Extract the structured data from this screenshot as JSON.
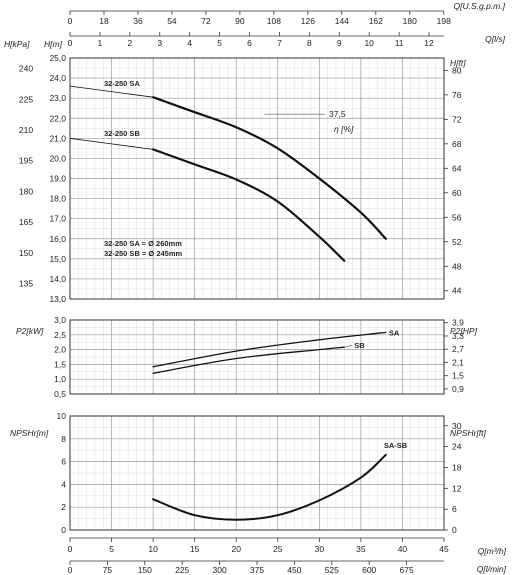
{
  "chart_data": [
    {
      "type": "line",
      "panel": "head",
      "xlabel_top_1": "Q[U.S.g.p.m.]",
      "xlabel_top_2": "Q[l/s]",
      "ylabel_left_1": "H[kPa]",
      "ylabel_left_2": "H[m]",
      "ylabel_right": "H[ft]",
      "efficiency_label": "η [%]",
      "efficiency_value": "37,5",
      "ticks_usgpm": [
        "0",
        "18",
        "36",
        "54",
        "72",
        "90",
        "108",
        "126",
        "144",
        "162",
        "180",
        "198"
      ],
      "ticks_ls": [
        "0",
        "1",
        "2",
        "3",
        "4",
        "5",
        "6",
        "7",
        "8",
        "9",
        "10",
        "11",
        "12"
      ],
      "ticks_kpa": [
        "240",
        "225",
        "210",
        "195",
        "180",
        "165",
        "150",
        "135"
      ],
      "ticks_m": [
        "25,0",
        "24,0",
        "23,0",
        "22,0",
        "21,0",
        "20,0",
        "19,0",
        "18,0",
        "17,0",
        "16,0",
        "15,0",
        "14,0",
        "13,0"
      ],
      "ticks_ft": [
        "80",
        "76",
        "72",
        "68",
        "64",
        "60",
        "56",
        "52",
        "48",
        "44"
      ],
      "ylim": [
        13,
        25
      ],
      "xlim": [
        0,
        45
      ],
      "series": [
        {
          "name": "32-250 SA",
          "x": [
            10,
            15,
            20,
            25,
            30,
            35,
            38
          ],
          "y": [
            23.05,
            22.3,
            21.55,
            20.5,
            19.0,
            17.3,
            16.0
          ]
        },
        {
          "name": "32-250 SB",
          "x": [
            10,
            15,
            20,
            25,
            30,
            33
          ],
          "y": [
            20.45,
            19.7,
            18.95,
            17.85,
            16.1,
            14.9
          ]
        }
      ],
      "shutoff": [
        {
          "x": [
            0,
            10
          ],
          "y": [
            23.6,
            23.05
          ]
        },
        {
          "x": [
            0,
            10
          ],
          "y": [
            21.0,
            20.45
          ]
        }
      ],
      "legend_lines": [
        "32-250 SA = Ø 260mm",
        "32-250 SB = Ø 245mm"
      ]
    },
    {
      "type": "line",
      "panel": "power",
      "ylabel_left": "P2[kW]",
      "ylabel_right": "P2[HP]",
      "ticks_kw": [
        "3,0",
        "2,5",
        "2,0",
        "1,5",
        "1,0",
        "0,5"
      ],
      "ticks_hp": [
        "3,9",
        "3,3",
        "2,7",
        "2,1",
        "1,5",
        "0,9"
      ],
      "ylim": [
        0.5,
        3.0
      ],
      "series": [
        {
          "name": "SA",
          "x": [
            10,
            20,
            30,
            38
          ],
          "y": [
            1.42,
            1.95,
            2.33,
            2.58
          ]
        },
        {
          "name": "SB",
          "x": [
            10,
            20,
            30,
            33
          ],
          "y": [
            1.2,
            1.7,
            2.0,
            2.08
          ]
        }
      ]
    },
    {
      "type": "line",
      "panel": "npsh",
      "ylabel_left": "NPSHr[m]",
      "ylabel_right": "NPSHr[ft]",
      "ticks_m": [
        "10",
        "8",
        "6",
        "4",
        "2",
        "0"
      ],
      "ticks_ft": [
        "30",
        "24",
        "18",
        "12",
        "6",
        "0"
      ],
      "ylim": [
        0,
        10
      ],
      "series": [
        {
          "name": "SA-SB",
          "x": [
            10,
            15,
            20,
            25,
            30,
            35,
            38
          ],
          "y": [
            2.7,
            1.3,
            0.9,
            1.3,
            2.6,
            4.6,
            6.6
          ]
        }
      ]
    }
  ],
  "bottom_axes": {
    "xlabel_m3h": "Q[m³/h]",
    "xlabel_lmin": "Q[l/min]",
    "ticks_m3h": [
      "0",
      "5",
      "10",
      "15",
      "20",
      "25",
      "30",
      "35",
      "40",
      "45"
    ],
    "ticks_lmin": [
      "0",
      "75",
      "150",
      "225",
      "300",
      "375",
      "450",
      "525",
      "600",
      "675"
    ]
  }
}
